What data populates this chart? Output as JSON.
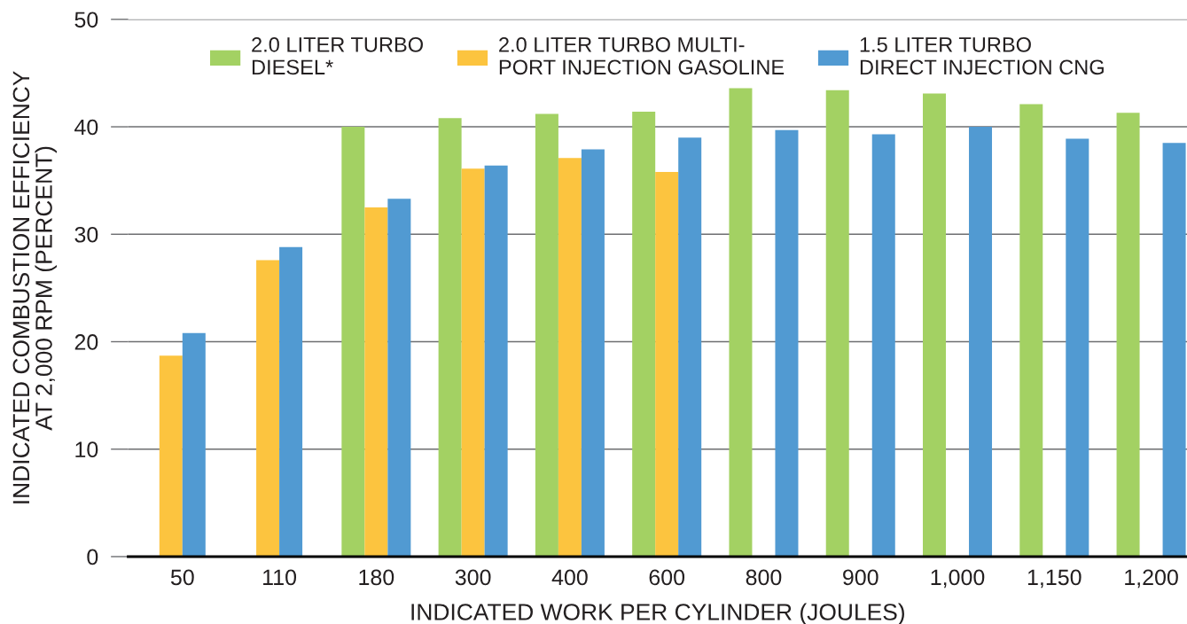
{
  "chart_data": {
    "type": "bar",
    "xlabel": "INDICATED WORK PER CYLINDER (JOULES)",
    "ylabel": "INDICATED COMBUSTION EFFICIENCY\nAT 2,000 RPM (PERCENT)",
    "categories": [
      "50",
      "110",
      "180",
      "300",
      "400",
      "600",
      "800",
      "900",
      "1,000",
      "1,150",
      "1,200"
    ],
    "series": [
      {
        "name": "2.0 LITER TURBO\nDIESEL*",
        "color": "#a3d163",
        "values": [
          null,
          null,
          40.0,
          40.8,
          41.2,
          41.4,
          43.6,
          43.4,
          43.1,
          42.1,
          41.3
        ]
      },
      {
        "name": "2.0 LITER TURBO MULTI-\nPORT INJECTION GASOLINE",
        "color": "#fcc43f",
        "values": [
          18.7,
          27.6,
          32.5,
          36.1,
          37.1,
          35.8,
          null,
          null,
          null,
          null,
          null
        ]
      },
      {
        "name": "1.5 LITER TURBO\nDIRECT INJECTION CNG",
        "color": "#519ad2",
        "values": [
          20.8,
          28.8,
          33.3,
          36.4,
          37.9,
          39.0,
          39.7,
          39.3,
          40.0,
          38.9,
          38.5
        ]
      }
    ],
    "ylim": [
      0,
      50
    ],
    "yticks": [
      0,
      10,
      20,
      30,
      40,
      50
    ],
    "grid": "y",
    "legend": "top"
  }
}
